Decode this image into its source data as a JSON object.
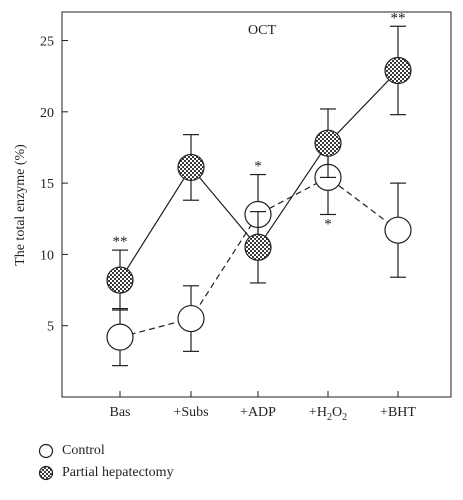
{
  "chart_data": {
    "type": "line",
    "title": "OCT",
    "xlabel": "",
    "ylabel": "The total enzyme (%)",
    "categories": [
      "Bas",
      "+Subs",
      "+ADP",
      "+H2O2",
      "+BHT"
    ],
    "ylim": [
      0,
      27
    ],
    "yticks": [
      5,
      10,
      15,
      20,
      25
    ],
    "grid": false,
    "legend_position": "bottom-left",
    "series": [
      {
        "name": "Control",
        "marker": "open-circle",
        "line": "dashed",
        "values": [
          4.2,
          5.5,
          12.8,
          15.4,
          11.7
        ],
        "error": [
          2.0,
          2.3,
          2.8,
          2.6,
          3.3
        ],
        "significance": [
          "",
          "",
          "*",
          "*",
          ""
        ]
      },
      {
        "name": "Partial hepatectomy",
        "marker": "checkered-circle",
        "line": "solid",
        "values": [
          8.2,
          16.1,
          10.5,
          17.8,
          22.9
        ],
        "error": [
          2.1,
          2.3,
          2.5,
          2.4,
          3.1
        ],
        "significance": [
          "**",
          "",
          "",
          "",
          "**"
        ]
      }
    ]
  },
  "colors": {
    "ink": "#231f20",
    "open_fill": "#ffffff",
    "check_dark": "#3a3a3a",
    "check_light": "#ffffff"
  }
}
